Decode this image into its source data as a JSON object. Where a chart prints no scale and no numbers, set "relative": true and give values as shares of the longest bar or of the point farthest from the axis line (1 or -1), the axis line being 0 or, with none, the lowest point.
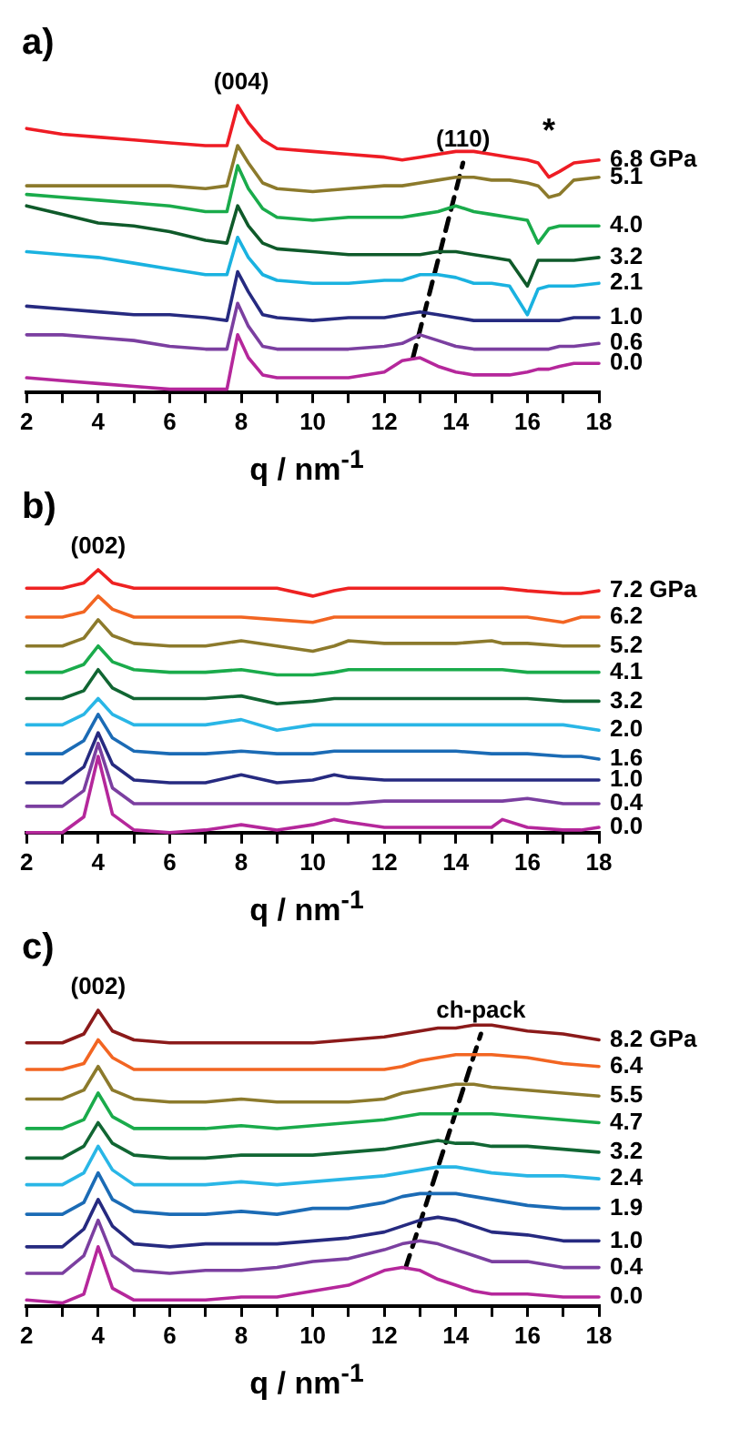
{
  "chart_data": [
    {
      "type": "line",
      "title": "a)",
      "xlabel": "q / nm$^{-1}$",
      "relative": true,
      "legend": false,
      "marker": "none",
      "line_style": "solid",
      "x": [
        2,
        3,
        4,
        5,
        6,
        7,
        7.6,
        7.9,
        8.2,
        8.6,
        9,
        10,
        11,
        12,
        12.5,
        13,
        13.5,
        14,
        14.5,
        15,
        15.5,
        16,
        16.3,
        16.6,
        16.9,
        17.3,
        18
      ],
      "xlim": [
        2,
        18
      ],
      "xticks": [
        2,
        {
          "value": 3,
          "label": null
        },
        4,
        {
          "value": 5,
          "label": null
        },
        6,
        {
          "value": 7,
          "label": null
        },
        8,
        {
          "value": 9,
          "label": null
        },
        10,
        {
          "value": 11,
          "label": null
        },
        12,
        {
          "value": 13,
          "label": null
        },
        14,
        {
          "value": 15,
          "label": null
        },
        16,
        {
          "value": 17,
          "label": null
        },
        18
      ],
      "annotations": [
        {
          "text": "(004)",
          "x": 8,
          "y": 1
        },
        {
          "text": "(110)",
          "x": 14.2,
          "y": 0.8
        },
        {
          "text": "*",
          "x": 16.6,
          "y": 0.75
        }
      ],
      "series": [
        {
          "name": "6.8 GPa",
          "color": "#ee1c24",
          "values": [
            0.92,
            0.9,
            0.89,
            0.88,
            0.87,
            0.86,
            0.86,
            1.0,
            0.94,
            0.88,
            0.85,
            0.84,
            0.83,
            0.82,
            0.81,
            0.82,
            0.83,
            0.84,
            0.84,
            0.83,
            0.82,
            0.81,
            0.8,
            0.75,
            0.77,
            0.8,
            0.81
          ]
        },
        {
          "name": "5.1",
          "color": "#8c7a2c",
          "values": [
            0.72,
            0.72,
            0.72,
            0.72,
            0.72,
            0.71,
            0.72,
            0.86,
            0.8,
            0.73,
            0.71,
            0.7,
            0.71,
            0.72,
            0.72,
            0.73,
            0.74,
            0.75,
            0.75,
            0.74,
            0.74,
            0.73,
            0.72,
            0.68,
            0.69,
            0.74,
            0.75
          ]
        },
        {
          "name": "4.0",
          "color": "#1aab4b",
          "values": [
            0.69,
            0.68,
            0.67,
            0.66,
            0.65,
            0.63,
            0.63,
            0.79,
            0.71,
            0.64,
            0.61,
            0.6,
            0.61,
            0.61,
            0.61,
            0.62,
            0.63,
            0.65,
            0.63,
            0.62,
            0.61,
            0.6,
            0.52,
            0.57,
            0.58,
            0.58,
            0.58
          ]
        },
        {
          "name": "3.2",
          "color": "#0f5a2a",
          "values": [
            0.65,
            0.62,
            0.59,
            0.58,
            0.56,
            0.53,
            0.52,
            0.65,
            0.58,
            0.52,
            0.5,
            0.49,
            0.48,
            0.48,
            0.48,
            0.48,
            0.49,
            0.49,
            0.48,
            0.47,
            0.46,
            0.37,
            0.46,
            0.46,
            0.46,
            0.46,
            0.47
          ]
        },
        {
          "name": "2.1",
          "color": "#1ab2e0",
          "values": [
            0.49,
            0.48,
            0.47,
            0.45,
            0.43,
            0.41,
            0.41,
            0.54,
            0.47,
            0.41,
            0.39,
            0.38,
            0.38,
            0.39,
            0.39,
            0.41,
            0.41,
            0.4,
            0.38,
            0.38,
            0.37,
            0.27,
            0.36,
            0.37,
            0.37,
            0.37,
            0.38
          ]
        },
        {
          "name": "1.0",
          "color": "#262a80",
          "values": [
            0.3,
            0.29,
            0.28,
            0.27,
            0.27,
            0.26,
            0.25,
            0.42,
            0.35,
            0.27,
            0.26,
            0.25,
            0.26,
            0.26,
            0.27,
            0.28,
            0.27,
            0.26,
            0.25,
            0.25,
            0.25,
            0.25,
            0.25,
            0.25,
            0.25,
            0.26,
            0.26
          ]
        },
        {
          "name": "0.6",
          "color": "#7b3fa0",
          "values": [
            0.2,
            0.2,
            0.19,
            0.18,
            0.16,
            0.15,
            0.15,
            0.31,
            0.23,
            0.16,
            0.15,
            0.15,
            0.15,
            0.16,
            0.17,
            0.2,
            0.18,
            0.16,
            0.15,
            0.15,
            0.15,
            0.15,
            0.15,
            0.15,
            0.16,
            0.16,
            0.17
          ]
        },
        {
          "name": "0.0",
          "color": "#b5279b",
          "values": [
            0.05,
            0.04,
            0.03,
            0.02,
            0.01,
            0.01,
            0.01,
            0.2,
            0.12,
            0.06,
            0.05,
            0.05,
            0.05,
            0.07,
            0.11,
            0.12,
            0.09,
            0.07,
            0.06,
            0.06,
            0.06,
            0.07,
            0.08,
            0.08,
            0.09,
            0.1,
            0.1
          ]
        },
        {
          "type": "line",
          "color": "#000000",
          "line_style": "dashed",
          "x": [
            12.8,
            14.2
          ],
          "values": [
            0.12,
            0.8
          ]
        }
      ]
    },
    {
      "type": "line",
      "title": "b)",
      "xlabel": "q / nm$^{-1}$",
      "relative": true,
      "legend": false,
      "marker": "none",
      "line_style": "solid",
      "x": [
        2,
        3,
        3.6,
        4,
        4.4,
        5,
        6,
        7,
        8,
        9,
        10,
        10.6,
        11,
        12,
        13,
        14,
        15,
        15.3,
        16,
        17,
        17.5,
        18
      ],
      "xlim": [
        2,
        18
      ],
      "xticks": [
        2,
        {
          "value": 3,
          "label": null
        },
        4,
        {
          "value": 5,
          "label": null
        },
        6,
        {
          "value": 7,
          "label": null
        },
        8,
        {
          "value": 9,
          "label": null
        },
        10,
        {
          "value": 11,
          "label": null
        },
        12,
        {
          "value": 13,
          "label": null
        },
        14,
        {
          "value": 15,
          "label": null
        },
        16,
        {
          "value": 17,
          "label": null
        },
        18
      ],
      "annotations": [
        {
          "text": "(002)",
          "x": 4,
          "y": 1
        }
      ],
      "series": [
        {
          "name": "7.2 GPa",
          "color": "#ee2222",
          "values": [
            0.93,
            0.93,
            0.95,
            1.0,
            0.95,
            0.93,
            0.93,
            0.93,
            0.93,
            0.93,
            0.9,
            0.92,
            0.93,
            0.93,
            0.93,
            0.93,
            0.93,
            0.93,
            0.92,
            0.91,
            0.91,
            0.92
          ]
        },
        {
          "name": "6.2",
          "color": "#f26522",
          "values": [
            0.82,
            0.82,
            0.84,
            0.9,
            0.85,
            0.82,
            0.82,
            0.82,
            0.82,
            0.81,
            0.8,
            0.82,
            0.82,
            0.82,
            0.82,
            0.82,
            0.82,
            0.82,
            0.82,
            0.8,
            0.82,
            0.82
          ]
        },
        {
          "name": "5.2",
          "color": "#8c7a2c",
          "values": [
            0.71,
            0.71,
            0.74,
            0.81,
            0.75,
            0.72,
            0.71,
            0.71,
            0.73,
            0.71,
            0.69,
            0.71,
            0.73,
            0.72,
            0.72,
            0.72,
            0.73,
            0.72,
            0.72,
            0.71,
            0.71,
            0.71
          ]
        },
        {
          "name": "4.1",
          "color": "#1aab4b",
          "values": [
            0.61,
            0.61,
            0.64,
            0.71,
            0.65,
            0.62,
            0.61,
            0.61,
            0.62,
            0.6,
            0.6,
            0.61,
            0.62,
            0.62,
            0.62,
            0.62,
            0.62,
            0.62,
            0.61,
            0.61,
            0.61,
            0.61
          ]
        },
        {
          "name": "3.2",
          "color": "#116633",
          "values": [
            0.51,
            0.51,
            0.54,
            0.62,
            0.55,
            0.51,
            0.51,
            0.51,
            0.52,
            0.49,
            0.5,
            0.51,
            0.51,
            0.51,
            0.51,
            0.51,
            0.51,
            0.51,
            0.51,
            0.5,
            0.5,
            0.5
          ]
        },
        {
          "name": "2.0",
          "color": "#29b6e6",
          "values": [
            0.41,
            0.41,
            0.45,
            0.51,
            0.45,
            0.41,
            0.41,
            0.41,
            0.43,
            0.39,
            0.41,
            0.41,
            0.41,
            0.41,
            0.41,
            0.41,
            0.41,
            0.41,
            0.41,
            0.41,
            0.4,
            0.39
          ]
        },
        {
          "name": "1.6",
          "color": "#1b6bb5",
          "values": [
            0.3,
            0.3,
            0.35,
            0.45,
            0.36,
            0.31,
            0.3,
            0.3,
            0.31,
            0.3,
            0.3,
            0.31,
            0.31,
            0.31,
            0.31,
            0.31,
            0.3,
            0.3,
            0.3,
            0.29,
            0.29,
            0.28
          ]
        },
        {
          "name": "1.0",
          "color": "#262a80",
          "values": [
            0.19,
            0.19,
            0.25,
            0.38,
            0.26,
            0.2,
            0.19,
            0.19,
            0.22,
            0.19,
            0.2,
            0.22,
            0.21,
            0.2,
            0.2,
            0.2,
            0.2,
            0.2,
            0.2,
            0.2,
            0.2,
            0.2
          ]
        },
        {
          "name": "0.4",
          "color": "#7b3fa0",
          "values": [
            0.1,
            0.1,
            0.16,
            0.34,
            0.17,
            0.11,
            0.11,
            0.11,
            0.11,
            0.11,
            0.11,
            0.11,
            0.11,
            0.12,
            0.12,
            0.12,
            0.12,
            0.12,
            0.13,
            0.11,
            0.11,
            0.11
          ]
        },
        {
          "name": "0.0",
          "color": "#b5279b",
          "values": [
            0.0,
            0.0,
            0.06,
            0.29,
            0.07,
            0.01,
            0.0,
            0.01,
            0.03,
            0.01,
            0.03,
            0.05,
            0.04,
            0.02,
            0.02,
            0.02,
            0.02,
            0.05,
            0.02,
            0.01,
            0.01,
            0.02
          ]
        }
      ]
    },
    {
      "type": "line",
      "title": "c)",
      "xlabel": "q / nm$^{-1}$",
      "relative": true,
      "legend": false,
      "marker": "none",
      "line_style": "solid",
      "x": [
        2,
        3,
        3.6,
        4,
        4.4,
        5,
        6,
        7,
        8,
        9,
        10,
        11,
        12,
        12.5,
        13,
        13.5,
        14,
        14.5,
        15,
        16,
        17,
        18
      ],
      "xlim": [
        2,
        18
      ],
      "xticks": [
        2,
        {
          "value": 3,
          "label": null
        },
        4,
        {
          "value": 5,
          "label": null
        },
        6,
        {
          "value": 7,
          "label": null
        },
        8,
        {
          "value": 9,
          "label": null
        },
        10,
        {
          "value": 11,
          "label": null
        },
        12,
        {
          "value": 13,
          "label": null
        },
        14,
        {
          "value": 15,
          "label": null
        },
        16,
        {
          "value": 17,
          "label": null
        },
        18
      ],
      "annotations": [
        {
          "text": "(002)",
          "x": 4,
          "y": 1
        },
        {
          "text": "ch-pack",
          "x": 14.7,
          "y": 0.92
        }
      ],
      "series": [
        {
          "name": "8.2 GPa",
          "color": "#8b1a1a",
          "values": [
            0.89,
            0.89,
            0.92,
            1.0,
            0.93,
            0.9,
            0.89,
            0.89,
            0.89,
            0.89,
            0.89,
            0.9,
            0.91,
            0.92,
            0.93,
            0.94,
            0.94,
            0.95,
            0.95,
            0.93,
            0.92,
            0.9
          ]
        },
        {
          "name": "6.4",
          "color": "#f26522",
          "values": [
            0.8,
            0.8,
            0.82,
            0.9,
            0.84,
            0.8,
            0.8,
            0.8,
            0.8,
            0.8,
            0.8,
            0.8,
            0.8,
            0.81,
            0.83,
            0.84,
            0.85,
            0.85,
            0.85,
            0.84,
            0.82,
            0.81
          ]
        },
        {
          "name": "5.5",
          "color": "#8c7a2c",
          "values": [
            0.7,
            0.7,
            0.73,
            0.81,
            0.73,
            0.7,
            0.69,
            0.69,
            0.7,
            0.69,
            0.69,
            0.69,
            0.7,
            0.72,
            0.73,
            0.74,
            0.75,
            0.75,
            0.74,
            0.73,
            0.72,
            0.71
          ]
        },
        {
          "name": "4.7",
          "color": "#1aab4b",
          "values": [
            0.6,
            0.6,
            0.63,
            0.72,
            0.64,
            0.6,
            0.6,
            0.6,
            0.61,
            0.6,
            0.61,
            0.62,
            0.63,
            0.64,
            0.65,
            0.65,
            0.65,
            0.65,
            0.65,
            0.64,
            0.63,
            0.62
          ]
        },
        {
          "name": "3.2",
          "color": "#116633",
          "values": [
            0.5,
            0.5,
            0.54,
            0.62,
            0.55,
            0.51,
            0.5,
            0.5,
            0.51,
            0.51,
            0.51,
            0.52,
            0.53,
            0.54,
            0.55,
            0.56,
            0.55,
            0.55,
            0.54,
            0.54,
            0.53,
            0.52
          ]
        },
        {
          "name": "2.4",
          "color": "#29b6e6",
          "values": [
            0.41,
            0.41,
            0.45,
            0.54,
            0.46,
            0.41,
            0.41,
            0.41,
            0.42,
            0.41,
            0.42,
            0.43,
            0.44,
            0.45,
            0.46,
            0.47,
            0.47,
            0.46,
            0.45,
            0.44,
            0.44,
            0.43
          ]
        },
        {
          "name": "1.9",
          "color": "#1b6bb5",
          "values": [
            0.31,
            0.31,
            0.35,
            0.45,
            0.36,
            0.32,
            0.31,
            0.31,
            0.32,
            0.31,
            0.33,
            0.33,
            0.35,
            0.37,
            0.38,
            0.38,
            0.38,
            0.37,
            0.36,
            0.34,
            0.33,
            0.33
          ]
        },
        {
          "name": "1.0",
          "color": "#262a80",
          "values": [
            0.2,
            0.2,
            0.26,
            0.36,
            0.27,
            0.21,
            0.2,
            0.21,
            0.21,
            0.21,
            0.22,
            0.23,
            0.25,
            0.27,
            0.29,
            0.3,
            0.29,
            0.27,
            0.25,
            0.24,
            0.22,
            0.22
          ]
        },
        {
          "name": "0.4",
          "color": "#7b3fa0",
          "values": [
            0.11,
            0.11,
            0.17,
            0.29,
            0.17,
            0.12,
            0.11,
            0.12,
            0.12,
            0.13,
            0.15,
            0.16,
            0.19,
            0.21,
            0.22,
            0.21,
            0.19,
            0.17,
            0.15,
            0.15,
            0.13,
            0.13
          ]
        },
        {
          "name": "0.0",
          "color": "#b5279b",
          "values": [
            0.02,
            0.01,
            0.04,
            0.2,
            0.06,
            0.02,
            0.02,
            0.02,
            0.03,
            0.03,
            0.05,
            0.07,
            0.12,
            0.13,
            0.12,
            0.09,
            0.07,
            0.05,
            0.04,
            0.04,
            0.03,
            0.03
          ]
        },
        {
          "type": "line",
          "color": "#000000",
          "line_style": "dashed",
          "x": [
            12.6,
            14.7
          ],
          "values": [
            0.13,
            0.92
          ]
        }
      ]
    }
  ]
}
